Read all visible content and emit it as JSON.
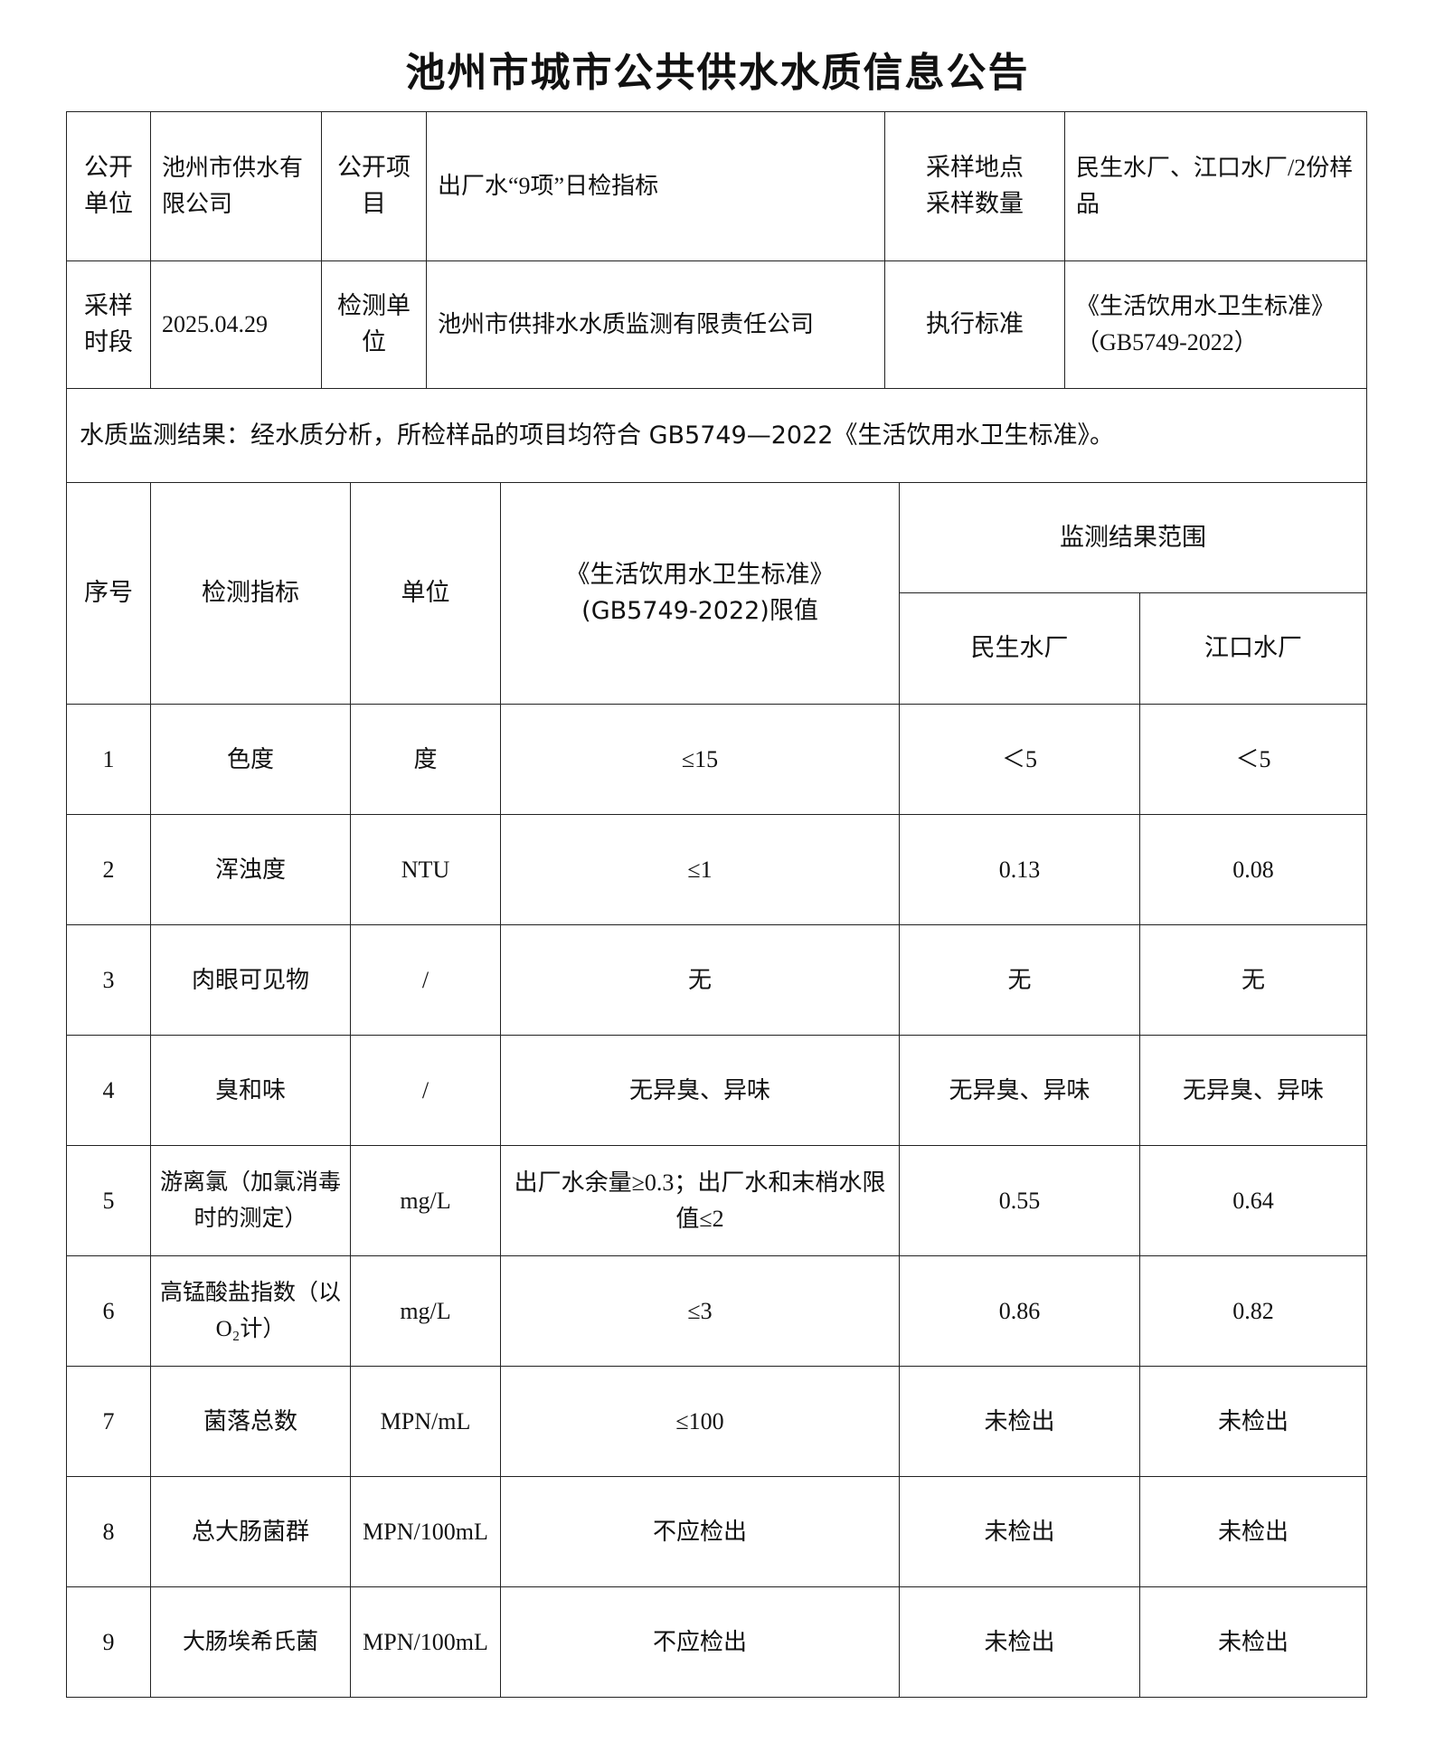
{
  "title": "池州市城市公共供水水质信息公告",
  "info": {
    "unit_label": "公开单位",
    "unit_value": "池州市供水有限公司",
    "project_label": "公开项目",
    "project_value": "出厂水“9项”日检指标",
    "site_label": "采样地点采样数量",
    "site_value": "民生水厂、江口水厂/2份样品",
    "period_label": "采样时段",
    "period_value": "2025.04.29",
    "lab_label": "检测单位",
    "lab_value": "池州市供排水水质监测有限责任公司",
    "std_label": "执行标准",
    "std_value": "《生活饮用水卫生标准》（GB5749-2022）"
  },
  "conclusion": "水质监测结果：经水质分析，所检样品的项目均符合 GB5749—2022《生活饮用水卫生标准》。",
  "results": {
    "headers": {
      "no": "序号",
      "indicator": "检测指标",
      "unit": "单位",
      "limit": "《生活饮用水卫生标准》(GB5749-2022)限值",
      "range": "监测结果范围",
      "plant1": "民生水厂",
      "plant2": "江口水厂"
    },
    "rows": [
      {
        "no": "1",
        "indicator": "色度",
        "unit": "度",
        "limit": "≤15",
        "plant1": "＜5",
        "plant2": "＜5"
      },
      {
        "no": "2",
        "indicator": "浑浊度",
        "unit": "NTU",
        "limit": "≤1",
        "plant1": "0.13",
        "plant2": "0.08"
      },
      {
        "no": "3",
        "indicator": "肉眼可见物",
        "unit": "/",
        "limit": "无",
        "plant1": "无",
        "plant2": "无"
      },
      {
        "no": "4",
        "indicator": "臭和味",
        "unit": "/",
        "limit": "无异臭、异味",
        "plant1": "无异臭、异味",
        "plant2": "无异臭、异味"
      },
      {
        "no": "5",
        "indicator": "游离氯（加氯消毒时的测定）",
        "unit": "mg/L",
        "limit": "出厂水余量≥0.3；出厂水和末梢水限值≤2",
        "plant1": "0.55",
        "plant2": "0.64"
      },
      {
        "no": "6",
        "indicator": "高锰酸盐指数（以O₂计）",
        "unit": "mg/L",
        "limit": "≤3",
        "plant1": "0.86",
        "plant2": "0.82"
      },
      {
        "no": "7",
        "indicator": "菌落总数",
        "unit": "MPN/mL",
        "limit": "≤100",
        "plant1": "未检出",
        "plant2": "未检出"
      },
      {
        "no": "8",
        "indicator": "总大肠菌群",
        "unit": "MPN/100mL",
        "limit": "不应检出",
        "plant1": "未检出",
        "plant2": "未检出"
      },
      {
        "no": "9",
        "indicator": "大肠埃希氏菌",
        "unit": "MPN/100mL",
        "limit": "不应检出",
        "plant1": "未检出",
        "plant2": "未检出"
      }
    ]
  }
}
